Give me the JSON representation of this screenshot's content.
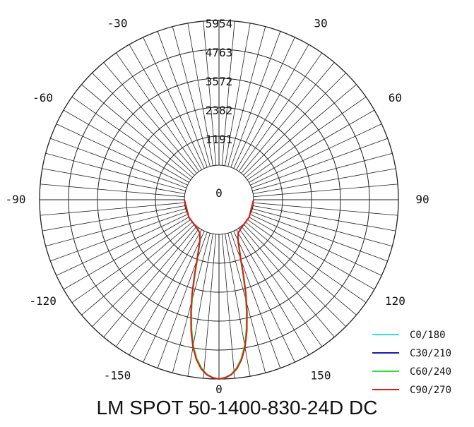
{
  "chart_data": {
    "type": "polar-line",
    "title": "LM SPOT 50-1400-830-24D DC",
    "radial_max": 5954,
    "radial_ticks": [
      1191,
      2382,
      3572,
      4763,
      5954
    ],
    "radial_tick_labels": [
      "1191",
      "2382",
      "3572",
      "4763",
      "5954"
    ],
    "center_label": "0",
    "angle_labels": [
      {
        "angle": 180,
        "text": "0"
      },
      {
        "angle": 150,
        "text": "30"
      },
      {
        "angle": -150,
        "text": "-30"
      },
      {
        "angle": 120,
        "text": "60"
      },
      {
        "angle": -120,
        "text": "-60"
      },
      {
        "angle": 90,
        "text": "90"
      },
      {
        "angle": -90,
        "text": "-90"
      },
      {
        "angle": 60,
        "text": "120"
      },
      {
        "angle": -60,
        "text": "-120"
      },
      {
        "angle": 30,
        "text": "150"
      },
      {
        "angle": -30,
        "text": "-150"
      },
      {
        "angle": 0,
        "text": "0"
      }
    ],
    "gamma_deg": [
      0,
      2,
      4,
      6,
      8,
      10,
      12,
      14,
      16,
      18,
      20,
      25,
      30,
      40,
      60,
      90
    ],
    "series": [
      {
        "name": "C0/180",
        "color": "#33e0e0",
        "values": [
          5954,
          5900,
          5780,
          5550,
          5200,
          4700,
          4050,
          3300,
          2550,
          1800,
          1200,
          420,
          150,
          40,
          10,
          0
        ]
      },
      {
        "name": "C30/210",
        "color": "#1a1ab0",
        "values": [
          5954,
          5900,
          5780,
          5550,
          5200,
          4700,
          4050,
          3300,
          2550,
          1800,
          1200,
          420,
          150,
          40,
          10,
          0
        ]
      },
      {
        "name": "C60/240",
        "color": "#2ee02e",
        "values": [
          5954,
          5900,
          5770,
          5530,
          5170,
          4660,
          4000,
          3250,
          2500,
          1760,
          1170,
          410,
          145,
          38,
          10,
          0
        ]
      },
      {
        "name": "C90/270",
        "color": "#e01a1a",
        "values": [
          5954,
          5910,
          5800,
          5580,
          5230,
          4740,
          4090,
          3340,
          2580,
          1830,
          1220,
          430,
          155,
          42,
          11,
          0
        ]
      }
    ],
    "legend_position": "bottom-right"
  }
}
